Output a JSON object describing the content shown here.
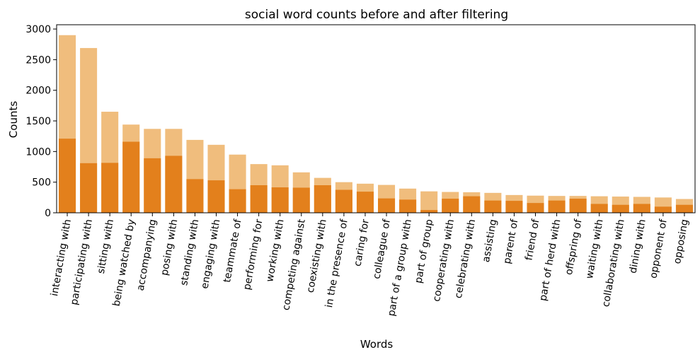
{
  "chart_data": {
    "type": "bar",
    "title": "social word counts before and after filtering",
    "xlabel": "Words",
    "ylabel": "Counts",
    "ylim": [
      0,
      3070
    ],
    "yticks": [
      0,
      500,
      1000,
      1500,
      2000,
      2500,
      3000
    ],
    "grid": false,
    "legend": "none",
    "categories": [
      "interacting with",
      "participating with",
      "sitting with",
      "being watched by",
      "accompanying",
      "posing with",
      "standing with",
      "engaging with",
      "teammate of",
      "performing for",
      "working with",
      "competing against",
      "coexisting with",
      "in the presence of",
      "caring for",
      "colleague of",
      "part of a group with",
      "part of group",
      "cooperating with",
      "celebrating with",
      "assisting",
      "parent of",
      "friend of",
      "part of herd with",
      "offspring of",
      "waiting with",
      "collaborating with",
      "dining with",
      "opponent of",
      "opposing"
    ],
    "series": [
      {
        "color": "#f0bd7d",
        "values": [
          2900,
          2690,
          1650,
          1440,
          1370,
          1370,
          1190,
          1110,
          950,
          795,
          775,
          660,
          570,
          500,
          475,
          455,
          395,
          350,
          340,
          335,
          325,
          290,
          280,
          275,
          275,
          270,
          265,
          260,
          250,
          225
        ]
      },
      {
        "color": "#e3801c",
        "values": [
          1210,
          810,
          815,
          1160,
          890,
          930,
          550,
          530,
          385,
          450,
          415,
          410,
          450,
          375,
          345,
          235,
          215,
          45,
          230,
          270,
          200,
          195,
          160,
          200,
          230,
          145,
          130,
          145,
          100,
          130
        ]
      }
    ]
  }
}
